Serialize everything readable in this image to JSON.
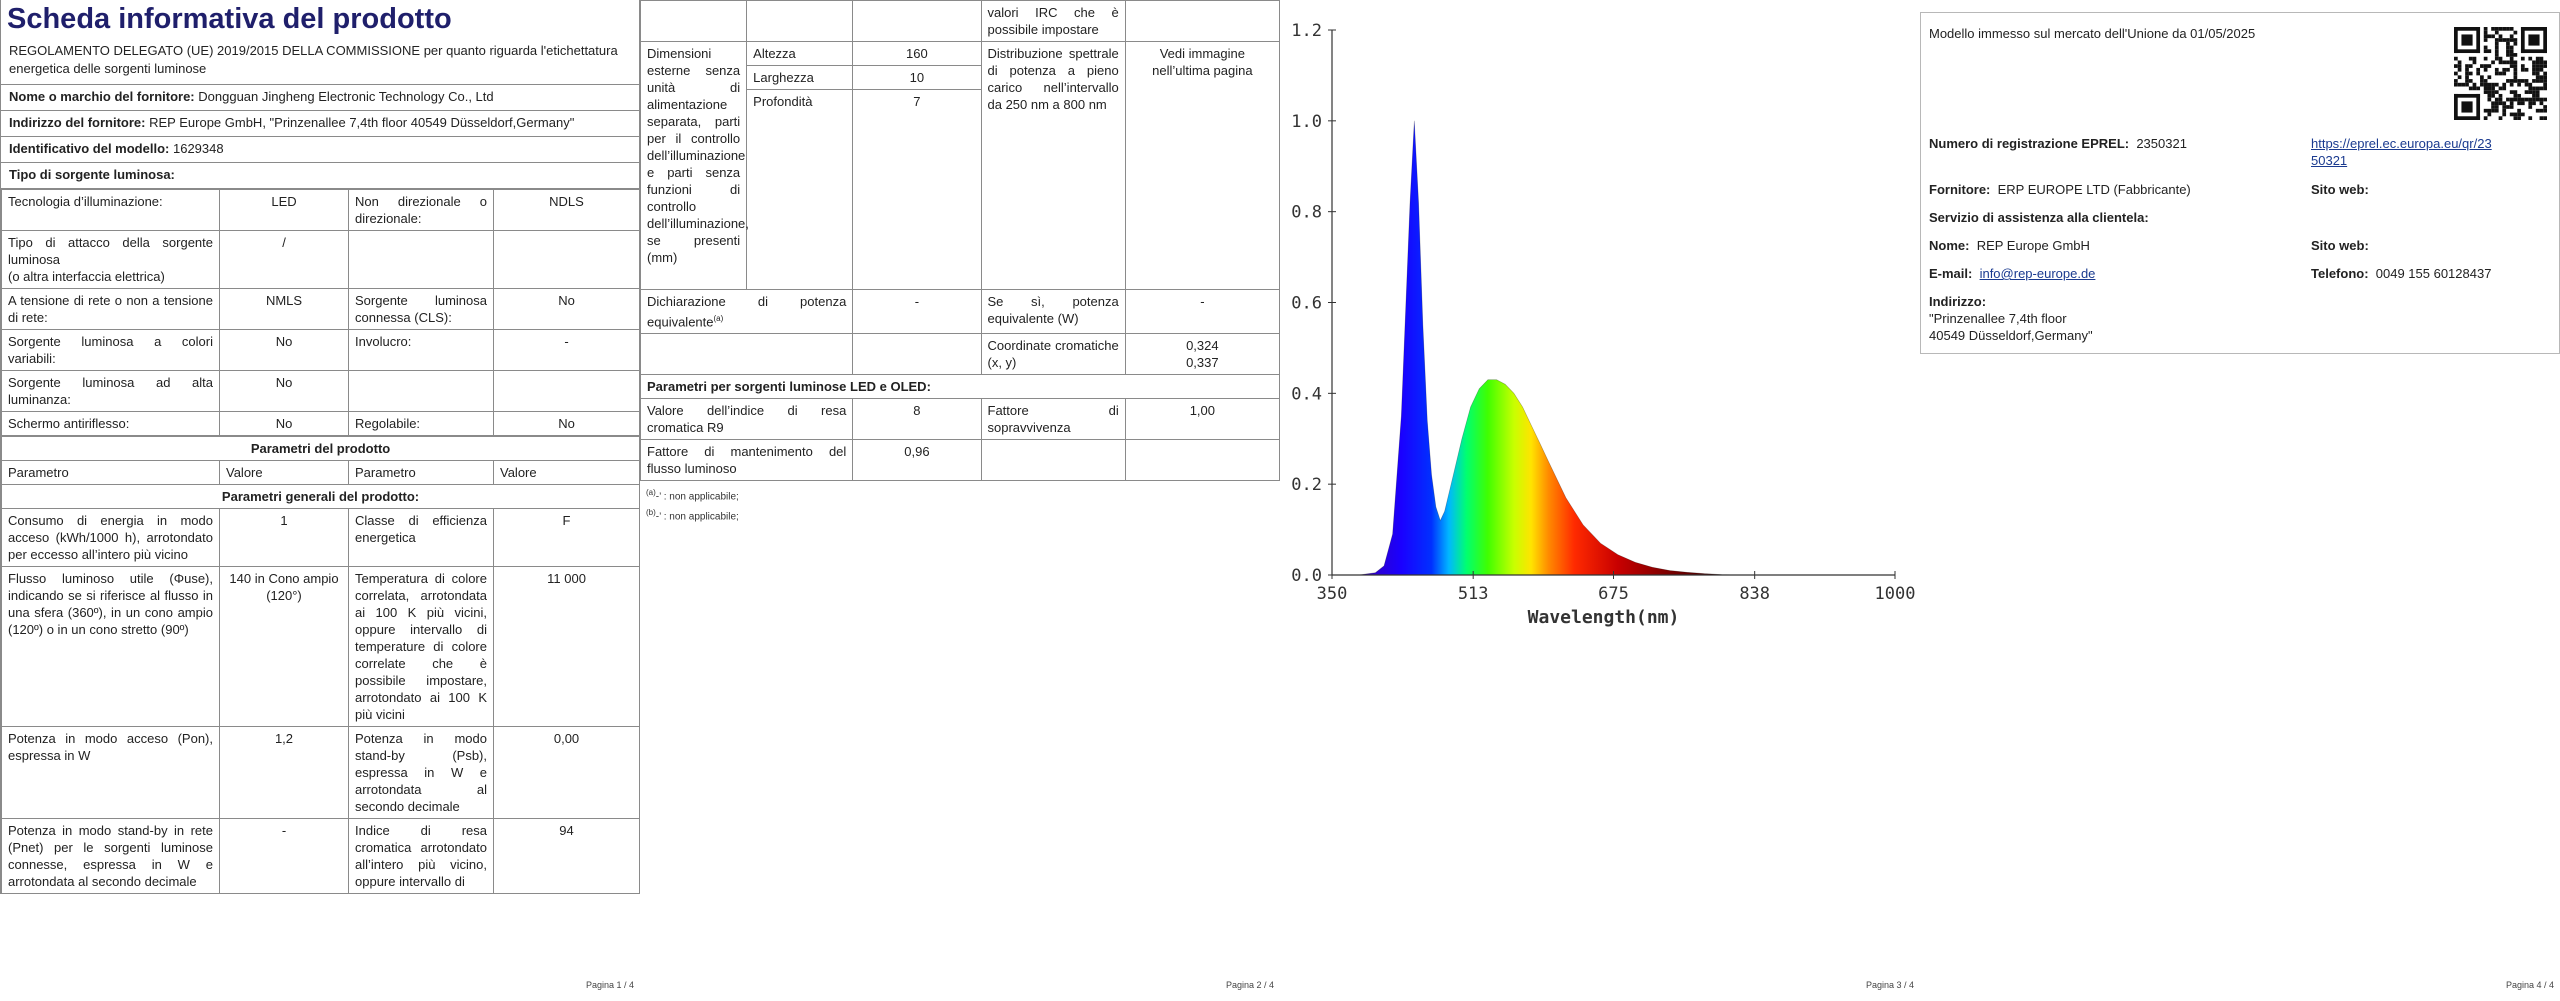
{
  "page1": {
    "title": "Scheda informativa del prodotto",
    "regulation": "REGOLAMENTO DELEGATO (UE) 2019/2015 DELLA COMMISSIONE per quanto riguarda l'etichettatura energetica delle sorgenti luminose",
    "supplier_label": "Nome o marchio del fornitore:",
    "supplier_value": "Dongguan Jingheng Electronic Technology Co., Ltd",
    "address_label": "Indirizzo del fornitore:",
    "address_value": "REP Europe GmbH, \"Prinzenallee 7,4th floor 40549 Düsseldorf,Germany\"",
    "model_label": "Identificativo del modello:",
    "model_value": "1629348",
    "source_type_label": "Tipo di sorgente luminosa:",
    "rows": [
      {
        "a": "Tecnologia d’illuminazione:",
        "b": "LED",
        "c": "Non direzionale o direzionale:",
        "d": "NDLS"
      },
      {
        "a": "Tipo di attacco della sorgente luminosa\n(o altra interfaccia elettrica)",
        "b": "/",
        "c": "",
        "d": ""
      },
      {
        "a": "A tensione di rete o non a tensione di rete:",
        "b": "NMLS",
        "c": "Sorgente luminosa connessa (CLS):",
        "d": "No"
      },
      {
        "a": "Sorgente luminosa a colori variabili:",
        "b": "No",
        "c": "Involucro:",
        "d": "-"
      },
      {
        "a": "Sorgente luminosa ad alta luminanza:",
        "b": "No",
        "c": "",
        "d": ""
      },
      {
        "a": "Schermo antiriflesso:",
        "b": "No",
        "c": "Regolabile:",
        "d": "No"
      }
    ],
    "params_header": "Parametri del prodotto",
    "col_param": "Parametro",
    "col_value": "Valore",
    "general_header": "Parametri generali del prodotto:",
    "general_rows": [
      {
        "a": "Consumo di energia in modo acceso (kWh/1000 h), arrotondato per eccesso all’intero più vicino",
        "b": "1",
        "c": "Classe di efficienza energetica",
        "d": "F"
      },
      {
        "a": "Flusso luminoso utile (Φuse), indicando se si riferisce al flusso in una sfera (360º), in un cono ampio (120º) o in un cono stretto (90º)",
        "b": "140 in Cono ampio (120°)",
        "c": "Temperatura di colore correlata, arrotondata ai 100 K più vicini, oppure intervallo di temperature di colore correlate che è possibile impostare, arrotondato ai 100 K più vicini",
        "d": "11 000"
      },
      {
        "a": "Potenza in modo acceso (Pon), espressa in W",
        "b": "1,2",
        "c": "Potenza in modo stand-by (Psb), espressa in W e arrotondata al secondo decimale",
        "d": "0,00"
      },
      {
        "a": "Potenza in modo stand-by in rete (Pnet) per le sorgenti luminose connesse, espressa in W e arrotondata al secondo decimale",
        "b": "-",
        "c": "Indice di resa cromatica arrotondato all’intero più vicino, oppure intervallo di",
        "d": "94"
      }
    ],
    "footer": "Pagina 1 / 4"
  },
  "page2": {
    "top_right": "valori IRC che è possibile impostare",
    "dims_label": "Dimensioni esterne senza unità di alimentazione separata, parti per il controllo dell’illuminazione e parti senza funzioni di controllo dell’illuminazione, se presenti (mm)",
    "dims": [
      {
        "k": "Altezza",
        "v": "160"
      },
      {
        "k": "Larghezza",
        "v": "10"
      },
      {
        "k": "Profondità",
        "v": "7"
      }
    ],
    "spd_label": "Distribuzione spettrale di potenza a pieno carico nell’intervallo da 250 nm a 800 nm",
    "spd_value": "Vedi immagine nell’ultima pagina",
    "eq_power_label": "Dichiarazione di potenza equivalente",
    "eq_power_sup": "(a)",
    "eq_power_value": "-",
    "eq_power_if_label": "Se sì, potenza equivalente (W)",
    "eq_power_if_value": "-",
    "chroma_label": "Coordinate cromatiche (x, y)",
    "chroma_x": "0,324",
    "chroma_y": "0,337",
    "led_header": "Parametri per sorgenti luminose LED e OLED:",
    "r9_label": "Valore dell’indice di resa cromatica R9",
    "r9_value": "8",
    "survival_label": "Fattore di sopravvivenza",
    "survival_value": "1,00",
    "maint_label": "Fattore di mantenimento del flusso luminoso",
    "maint_value": "0,96",
    "note_a": "(a)",
    "note_a_text": "-’ : non applicabile;",
    "note_b": "(b)",
    "note_b_text": "-’ : non applicabile;",
    "footer": "Pagina 2 / 4"
  },
  "chart_data": {
    "type": "line",
    "title": "",
    "xlabel": "Wavelength(nm)",
    "ylabel": "",
    "xlim": [
      350,
      1000
    ],
    "ylim": [
      0,
      1.2
    ],
    "x_ticks": [
      "350",
      "513",
      "675",
      "838",
      "1000"
    ],
    "y_ticks": [
      "0.0",
      "0.2",
      "0.4",
      "0.6",
      "0.8",
      "1.0",
      "1.2"
    ],
    "grid": false,
    "x": [
      350,
      380,
      400,
      410,
      420,
      430,
      440,
      445,
      450,
      455,
      460,
      465,
      470,
      475,
      480,
      490,
      500,
      510,
      520,
      530,
      540,
      550,
      560,
      570,
      580,
      590,
      600,
      620,
      640,
      660,
      680,
      700,
      720,
      740,
      760,
      780,
      800,
      820
    ],
    "values": [
      0.0,
      0.0,
      0.005,
      0.02,
      0.09,
      0.35,
      0.82,
      1.0,
      0.82,
      0.55,
      0.34,
      0.22,
      0.15,
      0.12,
      0.14,
      0.22,
      0.3,
      0.37,
      0.41,
      0.43,
      0.43,
      0.42,
      0.4,
      0.37,
      0.33,
      0.29,
      0.25,
      0.17,
      0.11,
      0.07,
      0.045,
      0.028,
      0.017,
      0.01,
      0.006,
      0.003,
      0.001,
      0.0
    ],
    "fill": "spectrum"
  },
  "page3": {
    "footer": "Pagina 3 / 4"
  },
  "page4": {
    "market_date": "Modello immesso sul mercato dell'Unione da 01/05/2025",
    "eprel_label": "Numero di registrazione EPREL:",
    "eprel_value": "2350321",
    "eprel_link": "https://eprel.ec.europa.eu/qr/2350321",
    "eprel_link_line1": "https://eprel.ec.europa.eu/qr/23",
    "eprel_link_line2": "50321",
    "supplier_label": "Fornitore:",
    "supplier_value": "ERP EUROPE LTD (Fabbricante)",
    "website_label": "Sito web:",
    "service_label": "Servizio di assistenza alla clientela:",
    "name_label": "Nome:",
    "name_value": "REP Europe GmbH",
    "website2_label": "Sito web:",
    "email_label": "E-mail:",
    "email_value": "info@rep-europe.de",
    "phone_label": "Telefono:",
    "phone_value": "0049 155 60128437",
    "addr_label": "Indirizzo:",
    "addr_line1": "\"Prinzenallee 7,4th floor",
    "addr_line2": "40549 Düsseldorf,Germany\"",
    "footer": "Pagina 4 / 4"
  }
}
